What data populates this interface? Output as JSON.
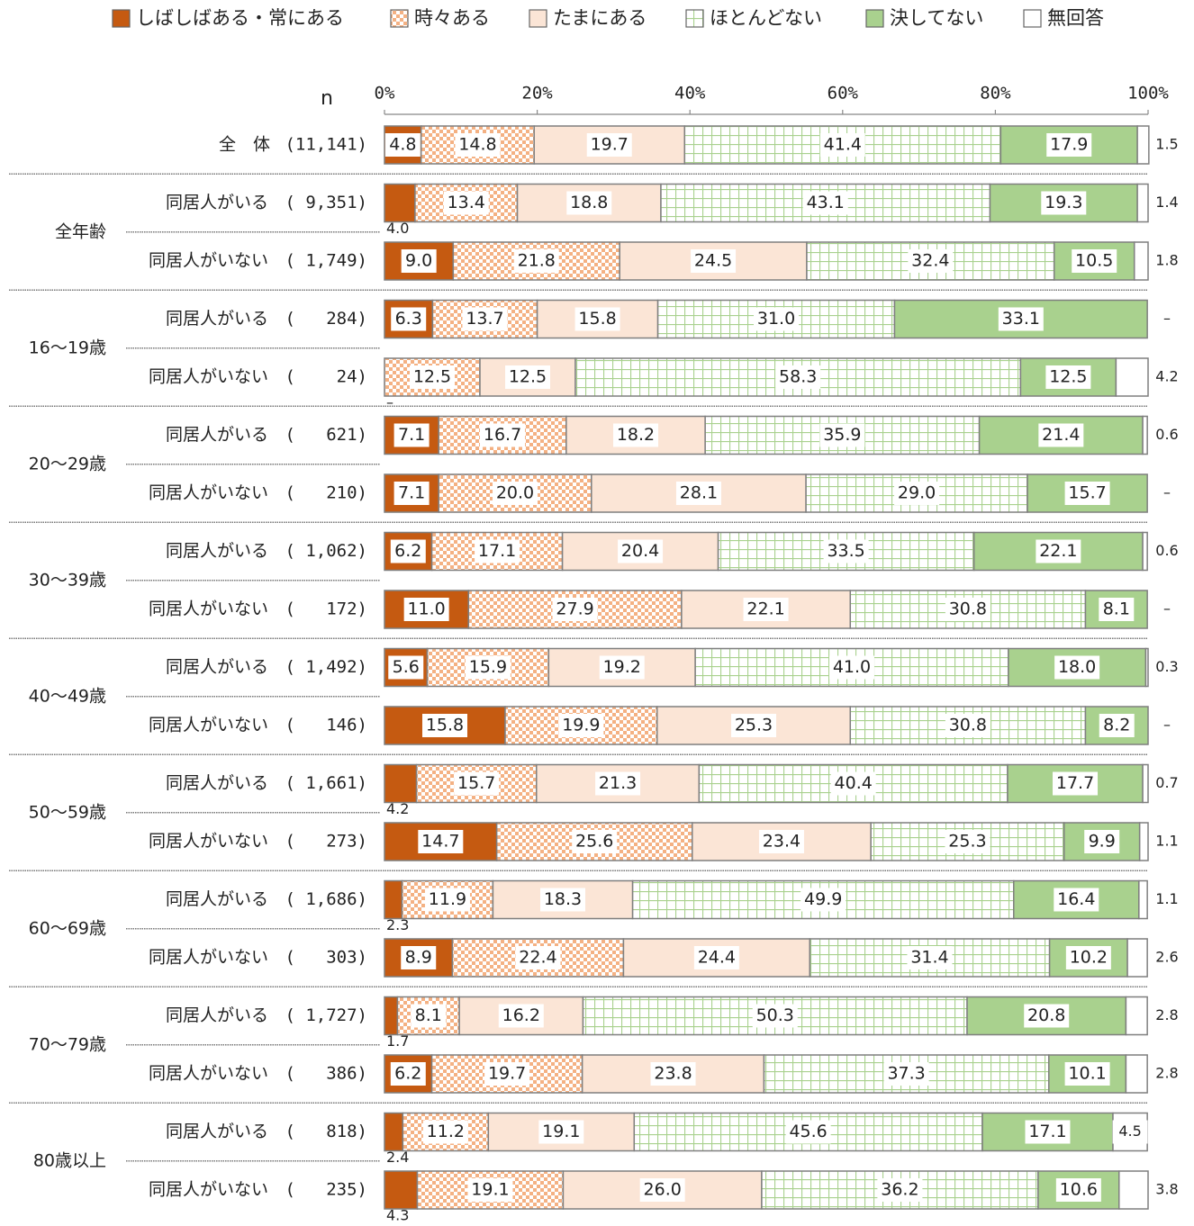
{
  "chart_data": {
    "type": "stacked-barh",
    "n_label": "n",
    "xlim": [
      0,
      100
    ],
    "xticks": [
      {
        "value": 0,
        "label": "0%"
      },
      {
        "value": 20,
        "label": "20%"
      },
      {
        "value": 40,
        "label": "40%"
      },
      {
        "value": 60,
        "label": "60%"
      },
      {
        "value": 80,
        "label": "80%"
      },
      {
        "value": 100,
        "label": "100%"
      }
    ],
    "categories": [
      "全　体",
      "同居人がいる",
      "同居人がいない",
      "同居人がいる",
      "同居人がいない",
      "同居人がいる",
      "同居人がいない",
      "同居人がいる",
      "同居人がいない",
      "同居人がいる",
      "同居人がいない",
      "同居人がいる",
      "同居人がいない",
      "同居人がいる",
      "同居人がいない",
      "同居人がいる",
      "同居人がいない",
      "同居人がいる",
      "同居人がいない"
    ],
    "n": [
      "(11,141)",
      "( 9,351)",
      "( 1,749)",
      "(   284)",
      "(    24)",
      "(   621)",
      "(   210)",
      "( 1,062)",
      "(   172)",
      "( 1,492)",
      "(   146)",
      "( 1,661)",
      "(   273)",
      "( 1,686)",
      "(   303)",
      "( 1,727)",
      "(   386)",
      "(   818)",
      "(   235)"
    ],
    "groups": [
      null,
      "全年齢",
      null,
      "16〜19歳",
      null,
      "20〜29歳",
      null,
      "30〜39歳",
      null,
      "40〜49歳",
      null,
      "50〜59歳",
      null,
      "60〜69歳",
      null,
      "70〜79歳",
      null,
      "80歳以上",
      null
    ],
    "series": [
      {
        "name": "しばしばある・常にある",
        "color": "#c55a11",
        "pattern": "solid",
        "values": [
          4.8,
          4.0,
          9.0,
          6.3,
          0,
          7.1,
          7.1,
          6.2,
          11.0,
          5.6,
          15.8,
          4.2,
          14.7,
          2.3,
          8.9,
          1.7,
          6.2,
          2.4,
          4.3
        ],
        "value_labels": [
          "4.8",
          "4.0",
          "9.0",
          "6.3",
          "–",
          "7.1",
          "7.1",
          "6.2",
          "11.0",
          "5.6",
          "15.8",
          "4.2",
          "14.7",
          "2.3",
          "8.9",
          "1.7",
          "6.2",
          "2.4",
          "4.3"
        ]
      },
      {
        "name": "時々ある",
        "color": "#f4b183",
        "pattern": "checker",
        "values": [
          14.8,
          13.4,
          21.8,
          13.7,
          12.5,
          16.7,
          20.0,
          17.1,
          27.9,
          15.9,
          19.9,
          15.7,
          25.6,
          11.9,
          22.4,
          8.1,
          19.7,
          11.2,
          19.1
        ],
        "value_labels": [
          "14.8",
          "13.4",
          "21.8",
          "13.7",
          "12.5",
          "16.7",
          "20.0",
          "17.1",
          "27.9",
          "15.9",
          "19.9",
          "15.7",
          "25.6",
          "11.9",
          "22.4",
          "8.1",
          "19.7",
          "11.2",
          "19.1"
        ]
      },
      {
        "name": "たまにある",
        "color": "#fbe5d6",
        "pattern": "solid",
        "values": [
          19.7,
          18.8,
          24.5,
          15.8,
          12.5,
          18.2,
          28.1,
          20.4,
          22.1,
          19.2,
          25.3,
          21.3,
          23.4,
          18.3,
          24.4,
          16.2,
          23.8,
          19.1,
          26.0
        ],
        "value_labels": [
          "19.7",
          "18.8",
          "24.5",
          "15.8",
          "12.5",
          "18.2",
          "28.1",
          "20.4",
          "22.1",
          "19.2",
          "25.3",
          "21.3",
          "23.4",
          "18.3",
          "24.4",
          "16.2",
          "23.8",
          "19.1",
          "26.0"
        ]
      },
      {
        "name": "ほとんどない",
        "color": "#a9d18e",
        "pattern": "grid",
        "values": [
          41.4,
          43.1,
          32.4,
          31.0,
          58.3,
          35.9,
          29.0,
          33.5,
          30.8,
          41.0,
          30.8,
          40.4,
          25.3,
          49.9,
          31.4,
          50.3,
          37.3,
          45.6,
          36.2
        ],
        "value_labels": [
          "41.4",
          "43.1",
          "32.4",
          "31.0",
          "58.3",
          "35.9",
          "29.0",
          "33.5",
          "30.8",
          "41.0",
          "30.8",
          "40.4",
          "25.3",
          "49.9",
          "31.4",
          "50.3",
          "37.3",
          "45.6",
          "36.2"
        ]
      },
      {
        "name": "決してない",
        "color": "#a9d18e",
        "pattern": "solid",
        "values": [
          17.9,
          19.3,
          10.5,
          33.1,
          12.5,
          21.4,
          15.7,
          22.1,
          8.1,
          18.0,
          8.2,
          17.7,
          9.9,
          16.4,
          10.2,
          20.8,
          10.1,
          17.1,
          10.6
        ],
        "value_labels": [
          "17.9",
          "19.3",
          "10.5",
          "33.1",
          "12.5",
          "21.4",
          "15.7",
          "22.1",
          "8.1",
          "18.0",
          "8.2",
          "17.7",
          "9.9",
          "16.4",
          "10.2",
          "20.8",
          "10.1",
          "17.1",
          "10.6"
        ]
      },
      {
        "name": "無回答",
        "color": "#ffffff",
        "pattern": "solid",
        "values": [
          1.5,
          1.4,
          1.8,
          0,
          4.2,
          0.6,
          0,
          0.6,
          0,
          0.3,
          0,
          0.7,
          1.1,
          1.1,
          2.6,
          2.8,
          2.8,
          4.5,
          3.8
        ],
        "value_labels": [
          "1.5",
          "1.4",
          "1.8",
          "–",
          "4.2",
          "0.6",
          "–",
          "0.6",
          "–",
          "0.3",
          "–",
          "0.7",
          "1.1",
          "1.1",
          "2.6",
          "2.8",
          "2.8",
          "4.5",
          "3.8"
        ]
      }
    ]
  }
}
